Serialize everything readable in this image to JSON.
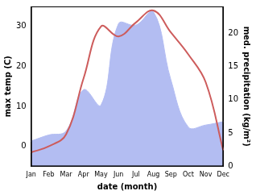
{
  "chart_data": {
    "type": "line",
    "xlabel": "date (month)",
    "ylabel": "max temp (C)",
    "y2label": "med. precipitation (kg/m²)",
    "categories": [
      "Jan",
      "Feb",
      "Mar",
      "Apr",
      "May",
      "Jun",
      "Jul",
      "Aug",
      "Sep",
      "Oct",
      "Nov",
      "Dec"
    ],
    "series": [
      {
        "type": "area",
        "axis": "y2",
        "color": "#b3bdf2",
        "values": [
          3.8,
          4.7,
          5.3,
          11.5,
          9.2,
          21.4,
          21.2,
          23.2,
          13,
          5.9,
          6.2,
          6.7
        ]
      },
      {
        "type": "line",
        "color": "#cd5c5c",
        "values": [
          -1.5,
          0,
          3,
          17,
          30,
          27.5,
          31,
          34,
          28.5,
          23,
          16,
          -1
        ]
      }
    ],
    "ylim": [
      -5,
      35
    ],
    "yticks": [
      0,
      10,
      20,
      30
    ],
    "y2lim": [
      0,
      24
    ],
    "y2ticks": [
      0,
      5,
      10,
      15,
      20
    ],
    "grid": false
  }
}
